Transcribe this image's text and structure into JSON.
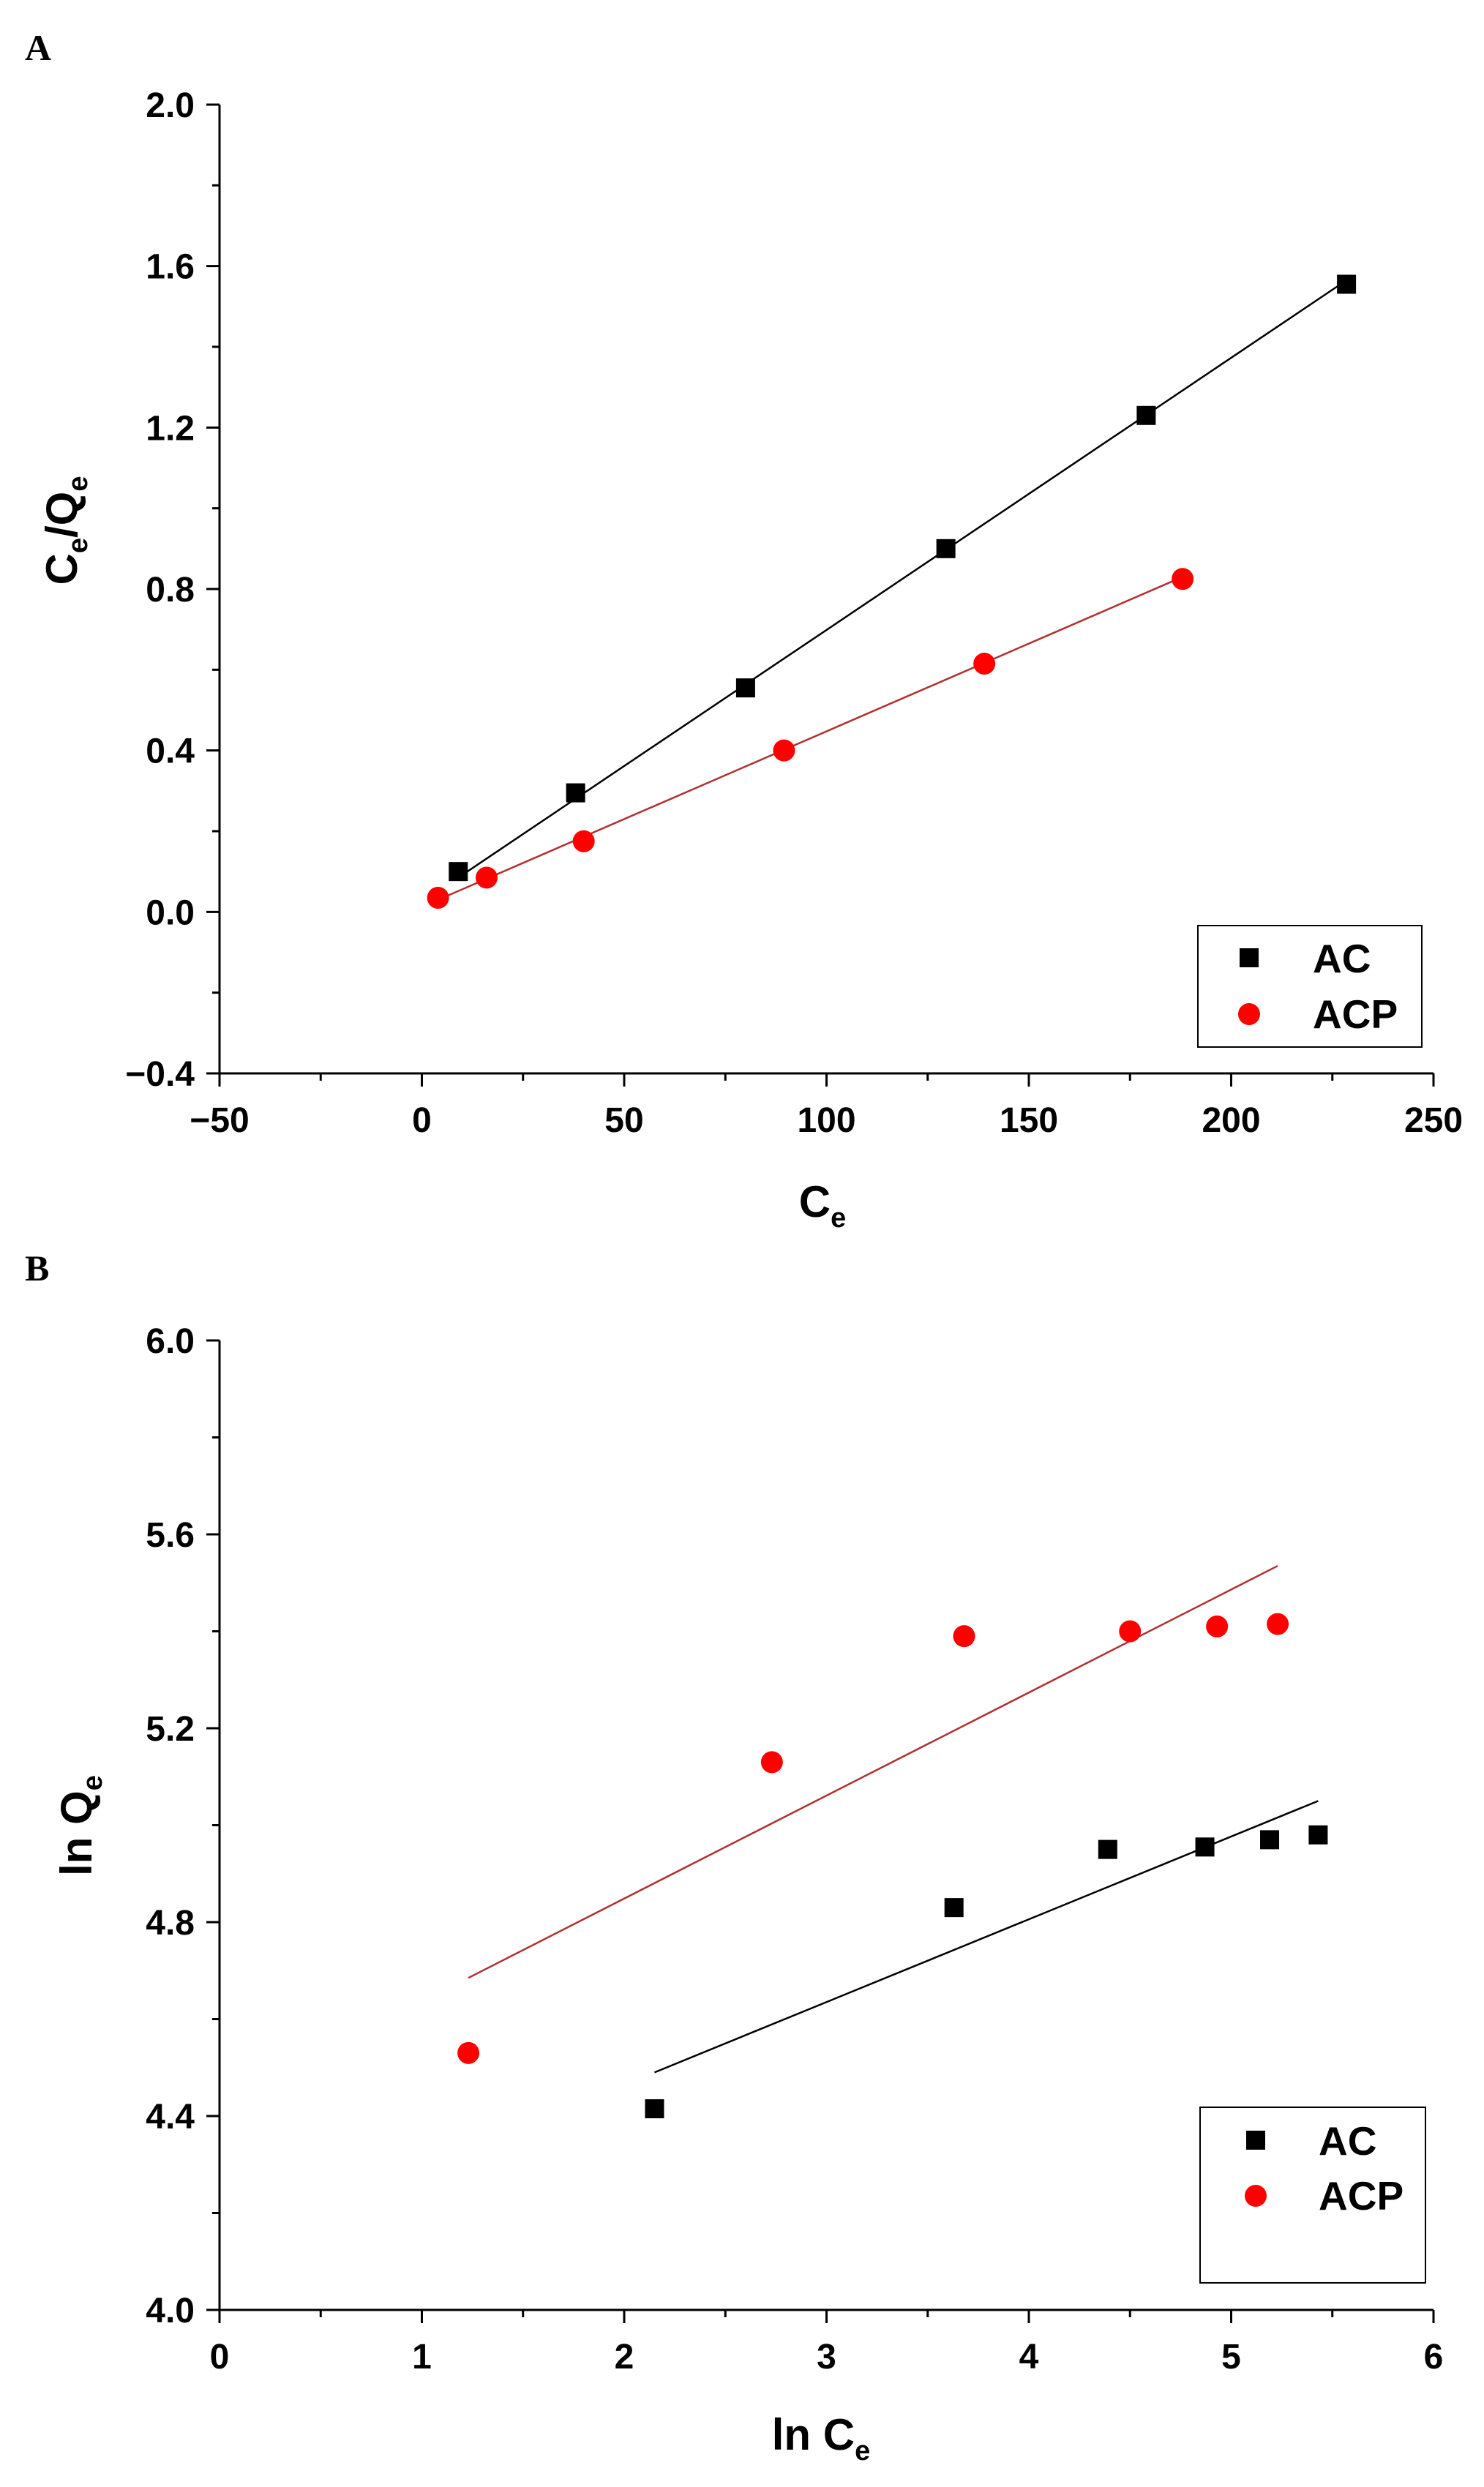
{
  "chart_data": [
    {
      "panel": "A",
      "type": "scatter",
      "title": "",
      "xlabel": "C",
      "xlabel_sub": "e",
      "ylabel_parts": [
        [
          "C",
          "e"
        ],
        [
          "/Q",
          "e"
        ]
      ],
      "xlim": [
        -50,
        250
      ],
      "ylim": [
        -0.4,
        2.0
      ],
      "xticks": [
        -50,
        0,
        50,
        100,
        150,
        200,
        250
      ],
      "xtick_labels": [
        "−50",
        "0",
        "50",
        "100",
        "150",
        "200",
        "250"
      ],
      "yticks": [
        -0.4,
        0.0,
        0.4,
        0.8,
        1.2,
        1.6,
        2.0
      ],
      "ytick_labels": [
        "−0.4",
        "0.0",
        "0.4",
        "0.8",
        "1.2",
        "1.6",
        "2.0"
      ],
      "legend_position": "bottom-right",
      "series": [
        {
          "name": "AC",
          "marker": "square",
          "color": "#000000",
          "x": [
            9.0,
            38.0,
            80.0,
            129.5,
            179.0,
            228.5
          ],
          "y": [
            0.1,
            0.295,
            0.555,
            0.9,
            1.23,
            1.555
          ],
          "fit": {
            "x": [
              9.0,
              228.5
            ],
            "y": [
              0.085,
              1.565
            ]
          }
        },
        {
          "name": "ACP",
          "marker": "circle",
          "color": "#ff0000",
          "x": [
            4.0,
            16.0,
            40.0,
            89.5,
            139.0,
            188.0
          ],
          "y": [
            0.035,
            0.085,
            0.175,
            0.4,
            0.615,
            0.825
          ],
          "fit": {
            "x": [
              4.0,
              188.0
            ],
            "y": [
              0.03,
              0.83
            ]
          }
        }
      ]
    },
    {
      "panel": "B",
      "type": "scatter",
      "title": "",
      "xlabel": "ln C",
      "xlabel_sub": "e",
      "ylabel_parts": [
        [
          "ln Q",
          "e"
        ]
      ],
      "xlim": [
        0,
        6
      ],
      "ylim": [
        4.0,
        6.0
      ],
      "xticks": [
        0,
        1,
        2,
        3,
        4,
        5,
        6
      ],
      "xtick_labels": [
        "0",
        "1",
        "2",
        "3",
        "4",
        "5",
        "6"
      ],
      "yticks": [
        4.0,
        4.4,
        4.8,
        5.2,
        5.6,
        6.0
      ],
      "ytick_labels": [
        "4.0",
        "4.4",
        "4.8",
        "5.2",
        "5.6",
        "6.0"
      ],
      "legend_position": "bottom-right",
      "series": [
        {
          "name": "AC",
          "marker": "square",
          "color": "#000000",
          "x": [
            2.15,
            3.63,
            4.39,
            4.87,
            5.19,
            5.43
          ],
          "y": [
            4.415,
            4.83,
            4.95,
            4.955,
            4.97,
            4.98
          ],
          "fit": {
            "x": [
              2.15,
              5.43
            ],
            "y": [
              4.49,
              5.05
            ]
          }
        },
        {
          "name": "ACP",
          "marker": "circle",
          "color": "#ff0000",
          "x": [
            1.23,
            2.73,
            3.68,
            4.5,
            4.93,
            5.23
          ],
          "y": [
            4.53,
            5.13,
            5.39,
            5.4,
            5.41,
            5.415
          ],
          "fit": {
            "x": [
              1.23,
              5.23
            ],
            "y": [
              4.685,
              5.535
            ]
          }
        }
      ]
    }
  ]
}
